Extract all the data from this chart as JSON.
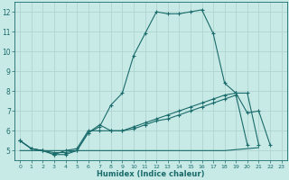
{
  "xlabel": "Humidex (Indice chaleur)",
  "bg_color": "#c8eae6",
  "grid_color": "#b0d4d0",
  "line_color": "#1a6b6b",
  "xlim": [
    -0.5,
    23.5
  ],
  "ylim": [
    4.5,
    12.5
  ],
  "yticks": [
    5,
    6,
    7,
    8,
    9,
    10,
    11,
    12
  ],
  "xticks": [
    0,
    1,
    2,
    3,
    4,
    5,
    6,
    7,
    8,
    9,
    10,
    11,
    12,
    13,
    14,
    15,
    16,
    17,
    18,
    19,
    20,
    21,
    22,
    23
  ],
  "series1_x": [
    0,
    1,
    2,
    3,
    4,
    5,
    6,
    7,
    8,
    9,
    10,
    11,
    12,
    13,
    14,
    15,
    16,
    17,
    18,
    19,
    20,
    21,
    22
  ],
  "series1_y": [
    5.5,
    5.1,
    5.0,
    4.8,
    4.8,
    5.0,
    5.9,
    6.2,
    7.3,
    7.9,
    9.8,
    10.9,
    12.0,
    11.9,
    11.9,
    12.0,
    12.1,
    10.9,
    8.4,
    7.9,
    6.9,
    7.0,
    5.3
  ],
  "series2_x": [
    0,
    1,
    2,
    3,
    4,
    5,
    6,
    7,
    8,
    9,
    10,
    11,
    12,
    13,
    14,
    15,
    16,
    17,
    18,
    19,
    20,
    21
  ],
  "series2_y": [
    5.5,
    5.1,
    5.0,
    4.8,
    5.0,
    5.1,
    6.0,
    6.0,
    6.0,
    6.0,
    6.2,
    6.4,
    6.6,
    6.8,
    7.0,
    7.2,
    7.4,
    7.6,
    7.8,
    7.9,
    7.9,
    5.3
  ],
  "series3_x": [
    0,
    1,
    2,
    3,
    4,
    5,
    6,
    7,
    8,
    9,
    10,
    11,
    12,
    13,
    14,
    15,
    16,
    17,
    18,
    19,
    20
  ],
  "series3_y": [
    5.5,
    5.1,
    5.0,
    4.9,
    4.9,
    5.0,
    5.9,
    6.3,
    6.0,
    6.0,
    6.1,
    6.3,
    6.5,
    6.6,
    6.8,
    7.0,
    7.2,
    7.4,
    7.6,
    7.8,
    5.3
  ],
  "series4_x": [
    0,
    1,
    2,
    3,
    4,
    5,
    6,
    7,
    8,
    9,
    10,
    11,
    12,
    13,
    14,
    15,
    16,
    17,
    18,
    19,
    20,
    21
  ],
  "series4_y": [
    5.0,
    5.0,
    5.0,
    5.0,
    5.0,
    5.0,
    5.0,
    5.0,
    5.0,
    5.0,
    5.0,
    5.0,
    5.0,
    5.0,
    5.0,
    5.0,
    5.0,
    5.0,
    5.0,
    5.05,
    5.1,
    5.15
  ]
}
